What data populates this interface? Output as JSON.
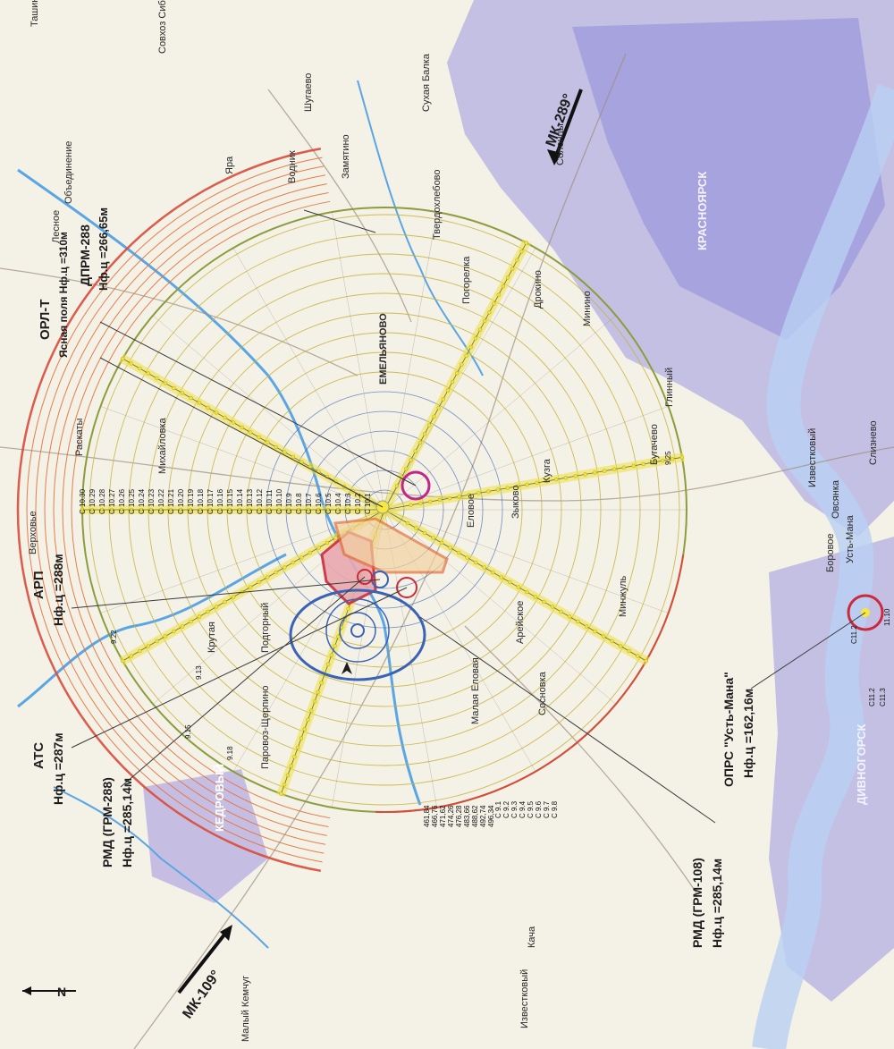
{
  "colors": {
    "inner_circles": "#3a63b5",
    "middle_circles": "#c7b33a",
    "outer_circles": "#e4703a",
    "outer_boundary": "#8e9c3c",
    "critical_zone": "#cc2a3c",
    "radial_band": "#ede23e",
    "urban_fill": "#8e8ad8",
    "river": "#4aa0e0"
  },
  "icons": {
    "north_arrow": "north-arrow-icon",
    "airport_marker": "airport-marker-icon"
  },
  "north_label": "N",
  "beacons": [
    {
      "id": "orp-t",
      "title": "ОРЛ-Т",
      "sub": "Ясная поля Нф.ц =310м"
    },
    {
      "id": "dprm",
      "title": "ДПРМ-288",
      "sub": "Нф.ц =266,65м"
    },
    {
      "id": "arp",
      "title": "АРП",
      "sub": "Нф.ц =288м"
    },
    {
      "id": "ats",
      "title": "АТС",
      "sub": "Нф.ц =287м"
    },
    {
      "id": "rmd-288",
      "title": "РМД (ГРМ-288)",
      "sub": "Нф.ц =285,14м"
    },
    {
      "id": "rmd-108",
      "title": "РМД (ГРМ-108)",
      "sub": "Нф.ц =285,14м"
    },
    {
      "id": "oprs",
      "title": "ОПРС \"Усть-Мана\"",
      "sub": "Нф.ц =162,16м"
    }
  ],
  "routes": [
    {
      "id": "mk289",
      "label": "МК-289°"
    },
    {
      "id": "mk109",
      "label": "МК-109°"
    }
  ],
  "places": [
    {
      "id": "tashino",
      "name": "Ташино"
    },
    {
      "id": "sovkhoz",
      "name": "Совхоз Сибирь"
    },
    {
      "id": "shugaevo",
      "name": "Шугаево"
    },
    {
      "id": "sukhaya-balka",
      "name": "Сухая Балка"
    },
    {
      "id": "zamyatino",
      "name": "Замятино"
    },
    {
      "id": "lesnoe",
      "name": "Лесное"
    },
    {
      "id": "obedinenie",
      "name": "Объединение"
    },
    {
      "id": "vodnik",
      "name": "Водник"
    },
    {
      "id": "yara",
      "name": "Яра"
    },
    {
      "id": "tverdokhleb",
      "name": "Твердохлебово"
    },
    {
      "id": "solonsy",
      "name": "Солонцы"
    },
    {
      "id": "emelyanovo",
      "name": "ЕМЕЛЬЯНОВО"
    },
    {
      "id": "pogorelka",
      "name": "Погорелка"
    },
    {
      "id": "druzhnoe",
      "name": "Дрокино"
    },
    {
      "id": "minino",
      "name": "Минино"
    },
    {
      "id": "raskaty",
      "name": "Раскаты"
    },
    {
      "id": "mikhailovka",
      "name": "Михайловка"
    },
    {
      "id": "verkhovye",
      "name": "Верховье"
    },
    {
      "id": "kryuchkovo",
      "name": "Крутая"
    },
    {
      "id": "glinnyi",
      "name": "Глинный"
    },
    {
      "id": "kuzga",
      "name": "Кузга"
    },
    {
      "id": "podgornoe",
      "name": "Подгорный"
    },
    {
      "id": "buguachany",
      "name": "Бугачево"
    },
    {
      "id": "mininskoe",
      "name": "Минжуль"
    },
    {
      "id": "elovoe",
      "name": "Еловое"
    },
    {
      "id": "aranchet",
      "name": "Арейское"
    },
    {
      "id": "shchekino",
      "name": "Зыково"
    },
    {
      "id": "sosnovka",
      "name": "Сосновка"
    },
    {
      "id": "malaya-elovaya",
      "name": "Малая Еловая"
    },
    {
      "id": "kedrovy",
      "name": "КЕДРОВЫЙ"
    },
    {
      "id": "galcino",
      "name": "Паровоз-Щерпино"
    },
    {
      "id": "kacha",
      "name": "Кача"
    },
    {
      "id": "izvestkovyi",
      "name": "Известковый"
    },
    {
      "id": "malyi-kemchug",
      "name": "Малый Кемчуг"
    },
    {
      "id": "borovoe",
      "name": "Боровое"
    },
    {
      "id": "ovsyanka",
      "name": "Овсянка"
    },
    {
      "id": "ust-mana",
      "name": "Усть-Мана"
    },
    {
      "id": "sliznevo",
      "name": "Слизнево"
    },
    {
      "id": "divnogorsk",
      "name": "ДИВНОГОРСК"
    },
    {
      "id": "krasnoyarsk",
      "name": "КРАСНОЯРСК"
    },
    {
      "id": "ovsyanka2",
      "name": "Известковый"
    }
  ],
  "sector_labels": {
    "west": [
      "С 10.30",
      "С 10.29",
      "С 10.28",
      "С 10.27",
      "С 10.26",
      "С 10.25",
      "С 10.24",
      "С 10.23",
      "С 10.22",
      "С 10.21",
      "С 10.20",
      "С 10.19",
      "С 10.18",
      "С 10.17",
      "С 10.16",
      "С 10.15",
      "С 10.14",
      "С 10.13",
      "С 10.12",
      "С 10.11",
      "С 10.10",
      "С 10.9",
      "С 10.8",
      "С 10.7",
      "С 10.6",
      "С 10.5",
      "С 10.4",
      "С 10.3",
      "С 10.2",
      "С 10.1"
    ],
    "south": [
      "С 9.1",
      "С 9.2",
      "С 9.3",
      "С 9.4",
      "С 9.5",
      "С 9.6",
      "С 9.7",
      "С 9.8"
    ],
    "oprs": [
      "С11.2",
      "С11.2",
      "С11.3",
      "11.10"
    ]
  },
  "heights_south": [
    "461,84",
    "466,76",
    "471,62",
    "474,26",
    "476,28",
    "483,66",
    "488,62",
    "492,74",
    "496,34"
  ],
  "markers": {
    "rmd_288_stations": [
      "9.15",
      "9.13",
      "9.22",
      "9.18",
      "9.25"
    ]
  }
}
